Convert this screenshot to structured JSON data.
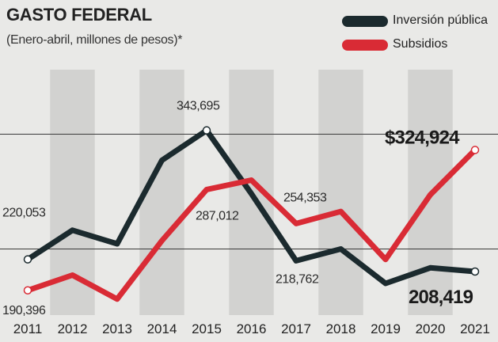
{
  "header": {
    "title": "GASTO FEDERAL",
    "subtitle": "(Enero-abril, millones de pesos)*"
  },
  "colors": {
    "background": "#e9e9e7",
    "band": "#d2d2d0",
    "inversion": "#1b2a2e",
    "subsidios": "#d92b35"
  },
  "chart_data": {
    "type": "line",
    "title": "GASTO FEDERAL",
    "subtitle": "(Enero-abril, millones de pesos)*",
    "categories": [
      "2011",
      "2012",
      "2013",
      "2014",
      "2015",
      "2016",
      "2017",
      "2018",
      "2019",
      "2020",
      "2021"
    ],
    "ylim": [
      150000,
      370000
    ],
    "gridlines": [
      230000,
      340000
    ],
    "legend_position": "top-right",
    "series": [
      {
        "name": "Inversión pública",
        "color": "#1b2a2e",
        "values": [
          220053,
          248000,
          235000,
          315000,
          343695,
          283000,
          218762,
          230000,
          197000,
          212000,
          208419
        ]
      },
      {
        "name": "Subsidios",
        "color": "#d92b35",
        "values": [
          190396,
          205000,
          182000,
          238000,
          287012,
          296000,
          254353,
          266000,
          220000,
          282000,
          324924
        ]
      }
    ],
    "data_labels": [
      {
        "series": 0,
        "index": 0,
        "text": "220,053"
      },
      {
        "series": 0,
        "index": 4,
        "text": "343,695"
      },
      {
        "series": 0,
        "index": 6,
        "text": "218,762"
      },
      {
        "series": 0,
        "index": 10,
        "text": "208,419",
        "emphasis": true
      },
      {
        "series": 1,
        "index": 0,
        "text": "190,396"
      },
      {
        "series": 1,
        "index": 4,
        "text": "287,012"
      },
      {
        "series": 1,
        "index": 6,
        "text": "254,353"
      },
      {
        "series": 1,
        "index": 10,
        "text": "$324,924",
        "emphasis": true
      }
    ]
  }
}
